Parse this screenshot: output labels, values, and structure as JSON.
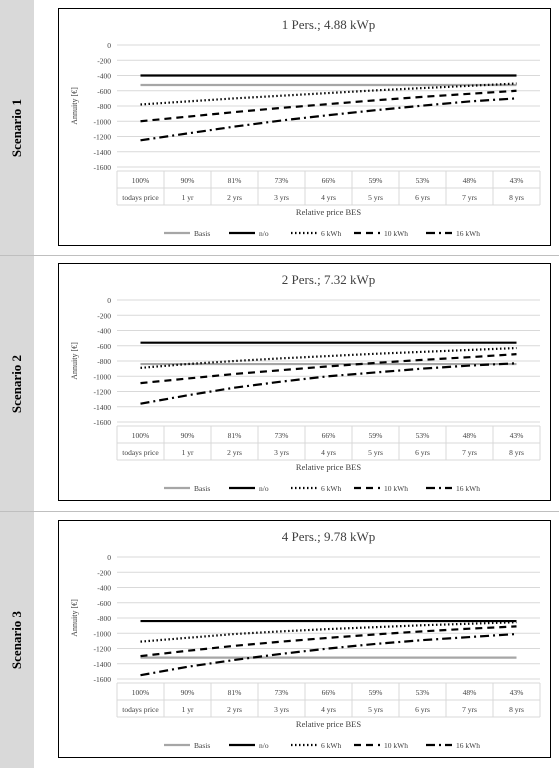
{
  "scenarios": [
    {
      "label": "Scenario 1"
    },
    {
      "label": "Scenario 2"
    },
    {
      "label": "Scenario 3"
    }
  ],
  "chart_data": [
    {
      "type": "line",
      "title": "1 Pers.; 4.88 kWp",
      "ylabel": "Annuity [€]",
      "xlabel": "Relative price BES",
      "ylim": [
        -1600,
        0
      ],
      "yticks": [
        "0",
        "-200",
        "-400",
        "-600",
        "-800",
        "-1000",
        "-1200",
        "-1400",
        "-1600"
      ],
      "categories": [
        "100%",
        "90%",
        "81%",
        "73%",
        "66%",
        "59%",
        "53%",
        "48%",
        "43%"
      ],
      "categories_sub": [
        "todays price",
        "1 yr",
        "2 yrs",
        "3 yrs",
        "4 yrs",
        "5 yrs",
        "6 yrs",
        "7 yrs",
        "8 yrs"
      ],
      "legend": "bottom",
      "series": [
        {
          "name": "Basis",
          "style": "basis",
          "values": [
            -525,
            -525,
            -525,
            -525,
            -525,
            -525,
            -525,
            -525,
            -525
          ]
        },
        {
          "name": "n/o",
          "style": "solid",
          "values": [
            -400,
            -400,
            -400,
            -400,
            -400,
            -400,
            -400,
            -400,
            -400
          ]
        },
        {
          "name": "6 kWh",
          "style": "dotted",
          "values": [
            -780,
            -740,
            -700,
            -665,
            -630,
            -595,
            -565,
            -535,
            -505
          ]
        },
        {
          "name": "10 kWh",
          "style": "dashed",
          "values": [
            -1000,
            -940,
            -880,
            -825,
            -775,
            -725,
            -680,
            -640,
            -600
          ]
        },
        {
          "name": "16 kWh",
          "style": "dashdot",
          "values": [
            -1250,
            -1160,
            -1070,
            -990,
            -920,
            -855,
            -795,
            -740,
            -700
          ]
        }
      ]
    },
    {
      "type": "line",
      "title": "2 Pers.; 7.32 kWp",
      "ylabel": "Annuity [€]",
      "xlabel": "Relative price BES",
      "ylim": [
        -1600,
        0
      ],
      "yticks": [
        "0",
        "-200",
        "-400",
        "-600",
        "-800",
        "-1000",
        "-1200",
        "-1400",
        "-1600"
      ],
      "categories": [
        "100%",
        "90%",
        "81%",
        "73%",
        "66%",
        "59%",
        "53%",
        "48%",
        "43%"
      ],
      "categories_sub": [
        "todays price",
        "1 yr",
        "2 yrs",
        "3 yrs",
        "4 yrs",
        "5 yrs",
        "6 yrs",
        "7 yrs",
        "8 yrs"
      ],
      "legend": "bottom",
      "series": [
        {
          "name": "Basis",
          "style": "basis",
          "values": [
            -840,
            -840,
            -840,
            -840,
            -840,
            -840,
            -840,
            -840,
            -840
          ]
        },
        {
          "name": "n/o",
          "style": "solid",
          "values": [
            -560,
            -560,
            -560,
            -560,
            -560,
            -560,
            -560,
            -560,
            -560
          ]
        },
        {
          "name": "6 kWh",
          "style": "dotted",
          "values": [
            -890,
            -840,
            -800,
            -765,
            -735,
            -705,
            -680,
            -655,
            -630
          ]
        },
        {
          "name": "10 kWh",
          "style": "dashed",
          "values": [
            -1090,
            -1030,
            -970,
            -920,
            -870,
            -825,
            -785,
            -750,
            -710
          ]
        },
        {
          "name": "16 kWh",
          "style": "dashdot",
          "values": [
            -1360,
            -1250,
            -1150,
            -1070,
            -1000,
            -950,
            -900,
            -860,
            -830
          ]
        }
      ]
    },
    {
      "type": "line",
      "title": "4 Pers.; 9.78 kWp",
      "ylabel": "Annuity [€]",
      "xlabel": "Relative price BES",
      "ylim": [
        -1600,
        0
      ],
      "yticks": [
        "0",
        "-200",
        "-400",
        "-600",
        "-800",
        "-1000",
        "-1200",
        "-1400",
        "-1600"
      ],
      "categories": [
        "100%",
        "90%",
        "81%",
        "73%",
        "66%",
        "59%",
        "53%",
        "48%",
        "43%"
      ],
      "categories_sub": [
        "todays price",
        "1 yr",
        "2 yrs",
        "3 yrs",
        "4 yrs",
        "5 yrs",
        "6 yrs",
        "7 yrs",
        "8 yrs"
      ],
      "legend": "bottom",
      "series": [
        {
          "name": "Basis",
          "style": "basis",
          "values": [
            -1320,
            -1320,
            -1320,
            -1320,
            -1320,
            -1320,
            -1320,
            -1320,
            -1320
          ]
        },
        {
          "name": "n/o",
          "style": "solid",
          "values": [
            -840,
            -840,
            -840,
            -840,
            -840,
            -840,
            -840,
            -840,
            -840
          ]
        },
        {
          "name": "6 kWh",
          "style": "dotted",
          "values": [
            -1110,
            -1060,
            -1010,
            -975,
            -945,
            -920,
            -895,
            -875,
            -855
          ]
        },
        {
          "name": "10 kWh",
          "style": "dashed",
          "values": [
            -1300,
            -1230,
            -1165,
            -1110,
            -1060,
            -1015,
            -975,
            -940,
            -910
          ]
        },
        {
          "name": "16 kWh",
          "style": "dashdot",
          "values": [
            -1550,
            -1440,
            -1350,
            -1270,
            -1200,
            -1140,
            -1090,
            -1050,
            -1010
          ]
        }
      ]
    }
  ]
}
